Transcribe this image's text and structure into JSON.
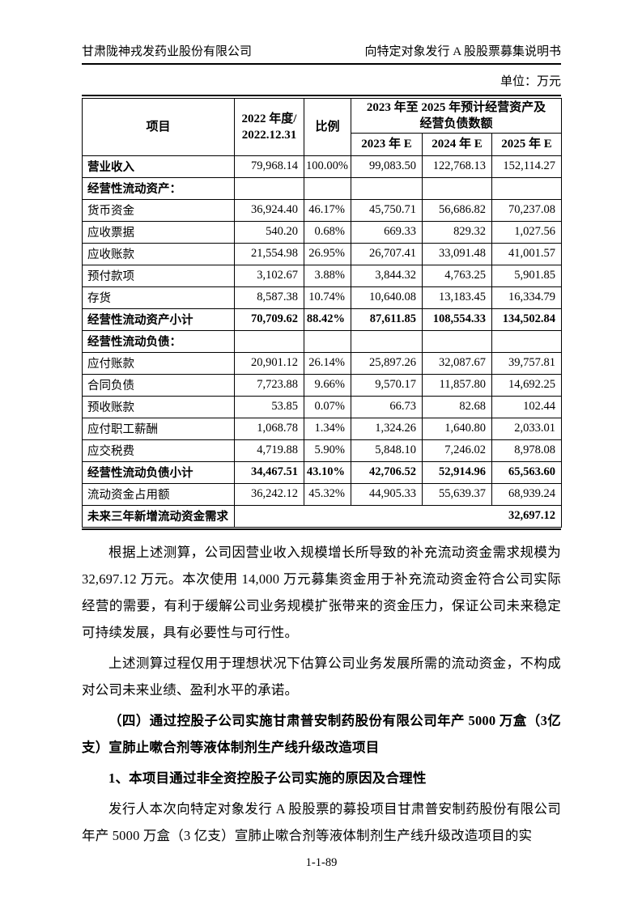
{
  "colors": {
    "ink": "#000000",
    "paper": "#ffffff"
  },
  "page_header": {
    "company": "甘肃陇神戎发药业股份有限公司",
    "doc_title": "向特定对象发行 A 股股票募集说明书"
  },
  "unit_label": "单位：万元",
  "table": {
    "header": {
      "col_item": "项目",
      "col_2022": "2022 年度/\n2022.12.31",
      "col_ratio": "比例",
      "col_forecast_group": "2023 年至 2025 年预计经营资产及\n经营负债数额",
      "col_2023": "2023 年 E",
      "col_2024": "2024 年 E",
      "col_2025": "2025 年 E"
    },
    "rows": [
      {
        "style": "label-bold",
        "label": "营业收入",
        "values": [
          "79,968.14",
          "100.00%",
          "99,083.50",
          "122,768.13",
          "152,114.27"
        ]
      },
      {
        "style": "section",
        "label": "经营性流动资产：",
        "values": [
          "",
          "",
          "",
          "",
          ""
        ]
      },
      {
        "style": "normal",
        "label": "货币资金",
        "values": [
          "36,924.40",
          "46.17%",
          "45,750.71",
          "56,686.82",
          "70,237.08"
        ]
      },
      {
        "style": "normal",
        "label": "应收票据",
        "values": [
          "540.20",
          "0.68%",
          "669.33",
          "829.32",
          "1,027.56"
        ]
      },
      {
        "style": "normal",
        "label": "应收账款",
        "values": [
          "21,554.98",
          "26.95%",
          "26,707.41",
          "33,091.48",
          "41,001.57"
        ]
      },
      {
        "style": "normal",
        "label": "预付款项",
        "values": [
          "3,102.67",
          "3.88%",
          "3,844.32",
          "4,763.25",
          "5,901.85"
        ]
      },
      {
        "style": "normal",
        "label": "存货",
        "values": [
          "8,587.38",
          "10.74%",
          "10,640.08",
          "13,183.45",
          "16,334.79"
        ]
      },
      {
        "style": "subtotal",
        "label": "经营性流动资产小计",
        "values": [
          "70,709.62",
          "88.42%",
          "87,611.85",
          "108,554.33",
          "134,502.84"
        ]
      },
      {
        "style": "section",
        "label": "经营性流动负债：",
        "values": [
          "",
          "",
          "",
          "",
          ""
        ]
      },
      {
        "style": "normal",
        "label": "应付账款",
        "values": [
          "20,901.12",
          "26.14%",
          "25,897.26",
          "32,087.67",
          "39,757.81"
        ]
      },
      {
        "style": "normal",
        "label": "合同负债",
        "values": [
          "7,723.88",
          "9.66%",
          "9,570.17",
          "11,857.80",
          "14,692.25"
        ]
      },
      {
        "style": "normal",
        "label": "预收账款",
        "values": [
          "53.85",
          "0.07%",
          "66.73",
          "82.68",
          "102.44"
        ]
      },
      {
        "style": "normal",
        "label": "应付职工薪酬",
        "values": [
          "1,068.78",
          "1.34%",
          "1,324.26",
          "1,640.80",
          "2,033.01"
        ]
      },
      {
        "style": "normal",
        "label": "应交税费",
        "values": [
          "4,719.88",
          "5.90%",
          "5,848.10",
          "7,246.02",
          "8,978.08"
        ]
      },
      {
        "style": "subtotal",
        "label": "经营性流动负债小计",
        "values": [
          "34,467.51",
          "43.10%",
          "42,706.52",
          "52,914.96",
          "65,563.60"
        ]
      },
      {
        "style": "normal",
        "label": "流动资金占用额",
        "values": [
          "36,242.12",
          "45.32%",
          "44,905.33",
          "55,639.37",
          "68,939.24"
        ]
      },
      {
        "style": "final",
        "label": "未来三年新增流动资金需求",
        "merged_value": "32,697.12"
      }
    ]
  },
  "body": {
    "p1": "根据上述测算，公司因营业收入规模增长所导致的补充流动资金需求规模为 32,697.12 万元。本次使用 14,000 万元募集资金用于补充流动资金符合公司实际经营的需要，有利于缓解公司业务规模扩张带来的资金压力，保证公司未来稳定可持续发展，具有必要性与可行性。",
    "p2": "上述测算过程仅用于理想状况下估算公司业务发展所需的流动资金，不构成对公司未来业绩、盈利水平的承诺。",
    "heading4": "（四）通过控股子公司实施甘肃普安制药股份有限公司年产 5000 万盒（3亿支）宣肺止嗽合剂等液体制剂生产线升级改造项目",
    "subheading1": "1、本项目通过非全资控股子公司实施的原因及合理性",
    "p3": "发行人本次向特定对象发行 A 股股票的募投项目甘肃普安制药股份有限公司年产 5000 万盒（3 亿支）宣肺止嗽合剂等液体制剂生产线升级改造项目的实"
  },
  "page_footer": {
    "page_number": "1-1-89"
  }
}
